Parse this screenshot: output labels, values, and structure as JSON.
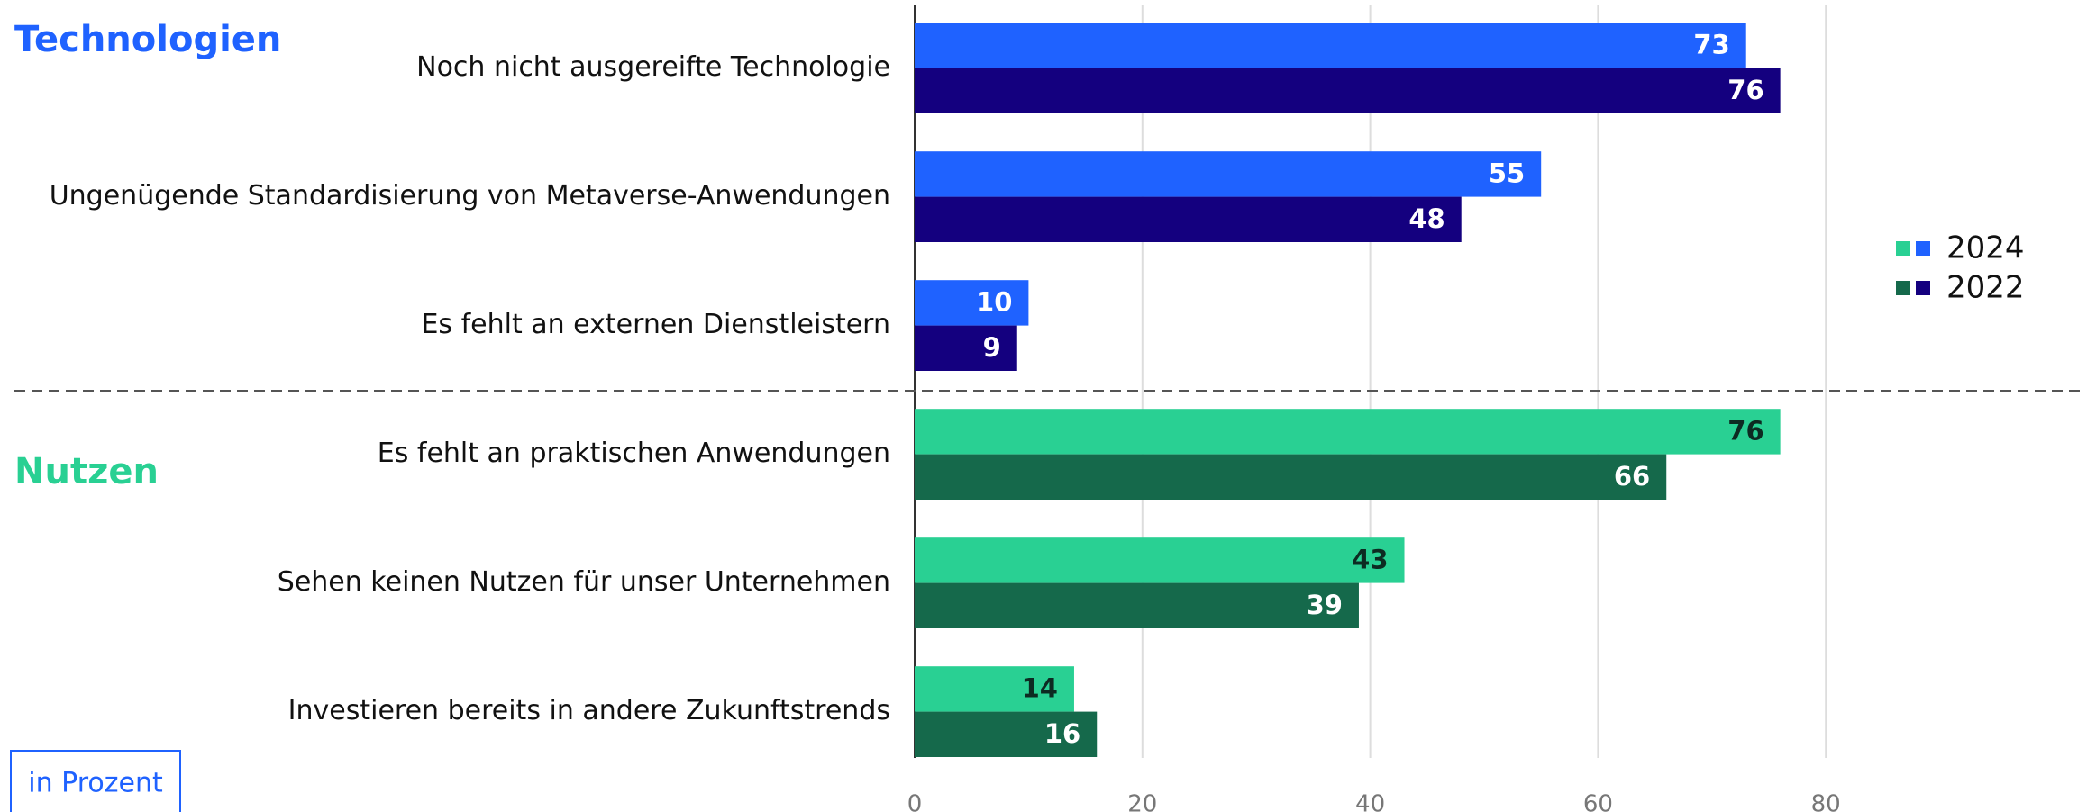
{
  "chart_data": {
    "type": "bar",
    "orientation": "horizontal",
    "groups": [
      {
        "label": "Technologien",
        "color": "#1f62ff",
        "categories": [
          "Noch nicht ausgereifte Technologie",
          "Ungenügende Standardisierung von Metaverse-Anwendungen",
          "Es fehlt an externen Dienstleistern"
        ]
      },
      {
        "label": "Nutzen",
        "color": "#29d093",
        "categories": [
          "Es fehlt an praktischen Anwendungen",
          "Sehen keinen Nutzen für unser Unternehmen",
          "Investieren bereits in andere Zukunftstrends"
        ]
      }
    ],
    "series": [
      {
        "name": "2024",
        "colors": [
          "#1f62ff",
          "#29d093"
        ],
        "label_colors": [
          "#ffffff",
          "#0d2b22"
        ],
        "values": [
          [
            73,
            55,
            10
          ],
          [
            76,
            43,
            14
          ]
        ]
      },
      {
        "name": "2022",
        "colors": [
          "#14007f",
          "#15694b"
        ],
        "label_colors": [
          "#ffffff",
          "#ffffff"
        ],
        "values": [
          [
            76,
            48,
            9
          ],
          [
            66,
            39,
            16
          ]
        ]
      }
    ],
    "xlim": [
      0,
      100
    ],
    "xticks": [
      0,
      20,
      40,
      60,
      80
    ],
    "grid": true,
    "legend": "right",
    "unit_note": "in Prozent"
  }
}
